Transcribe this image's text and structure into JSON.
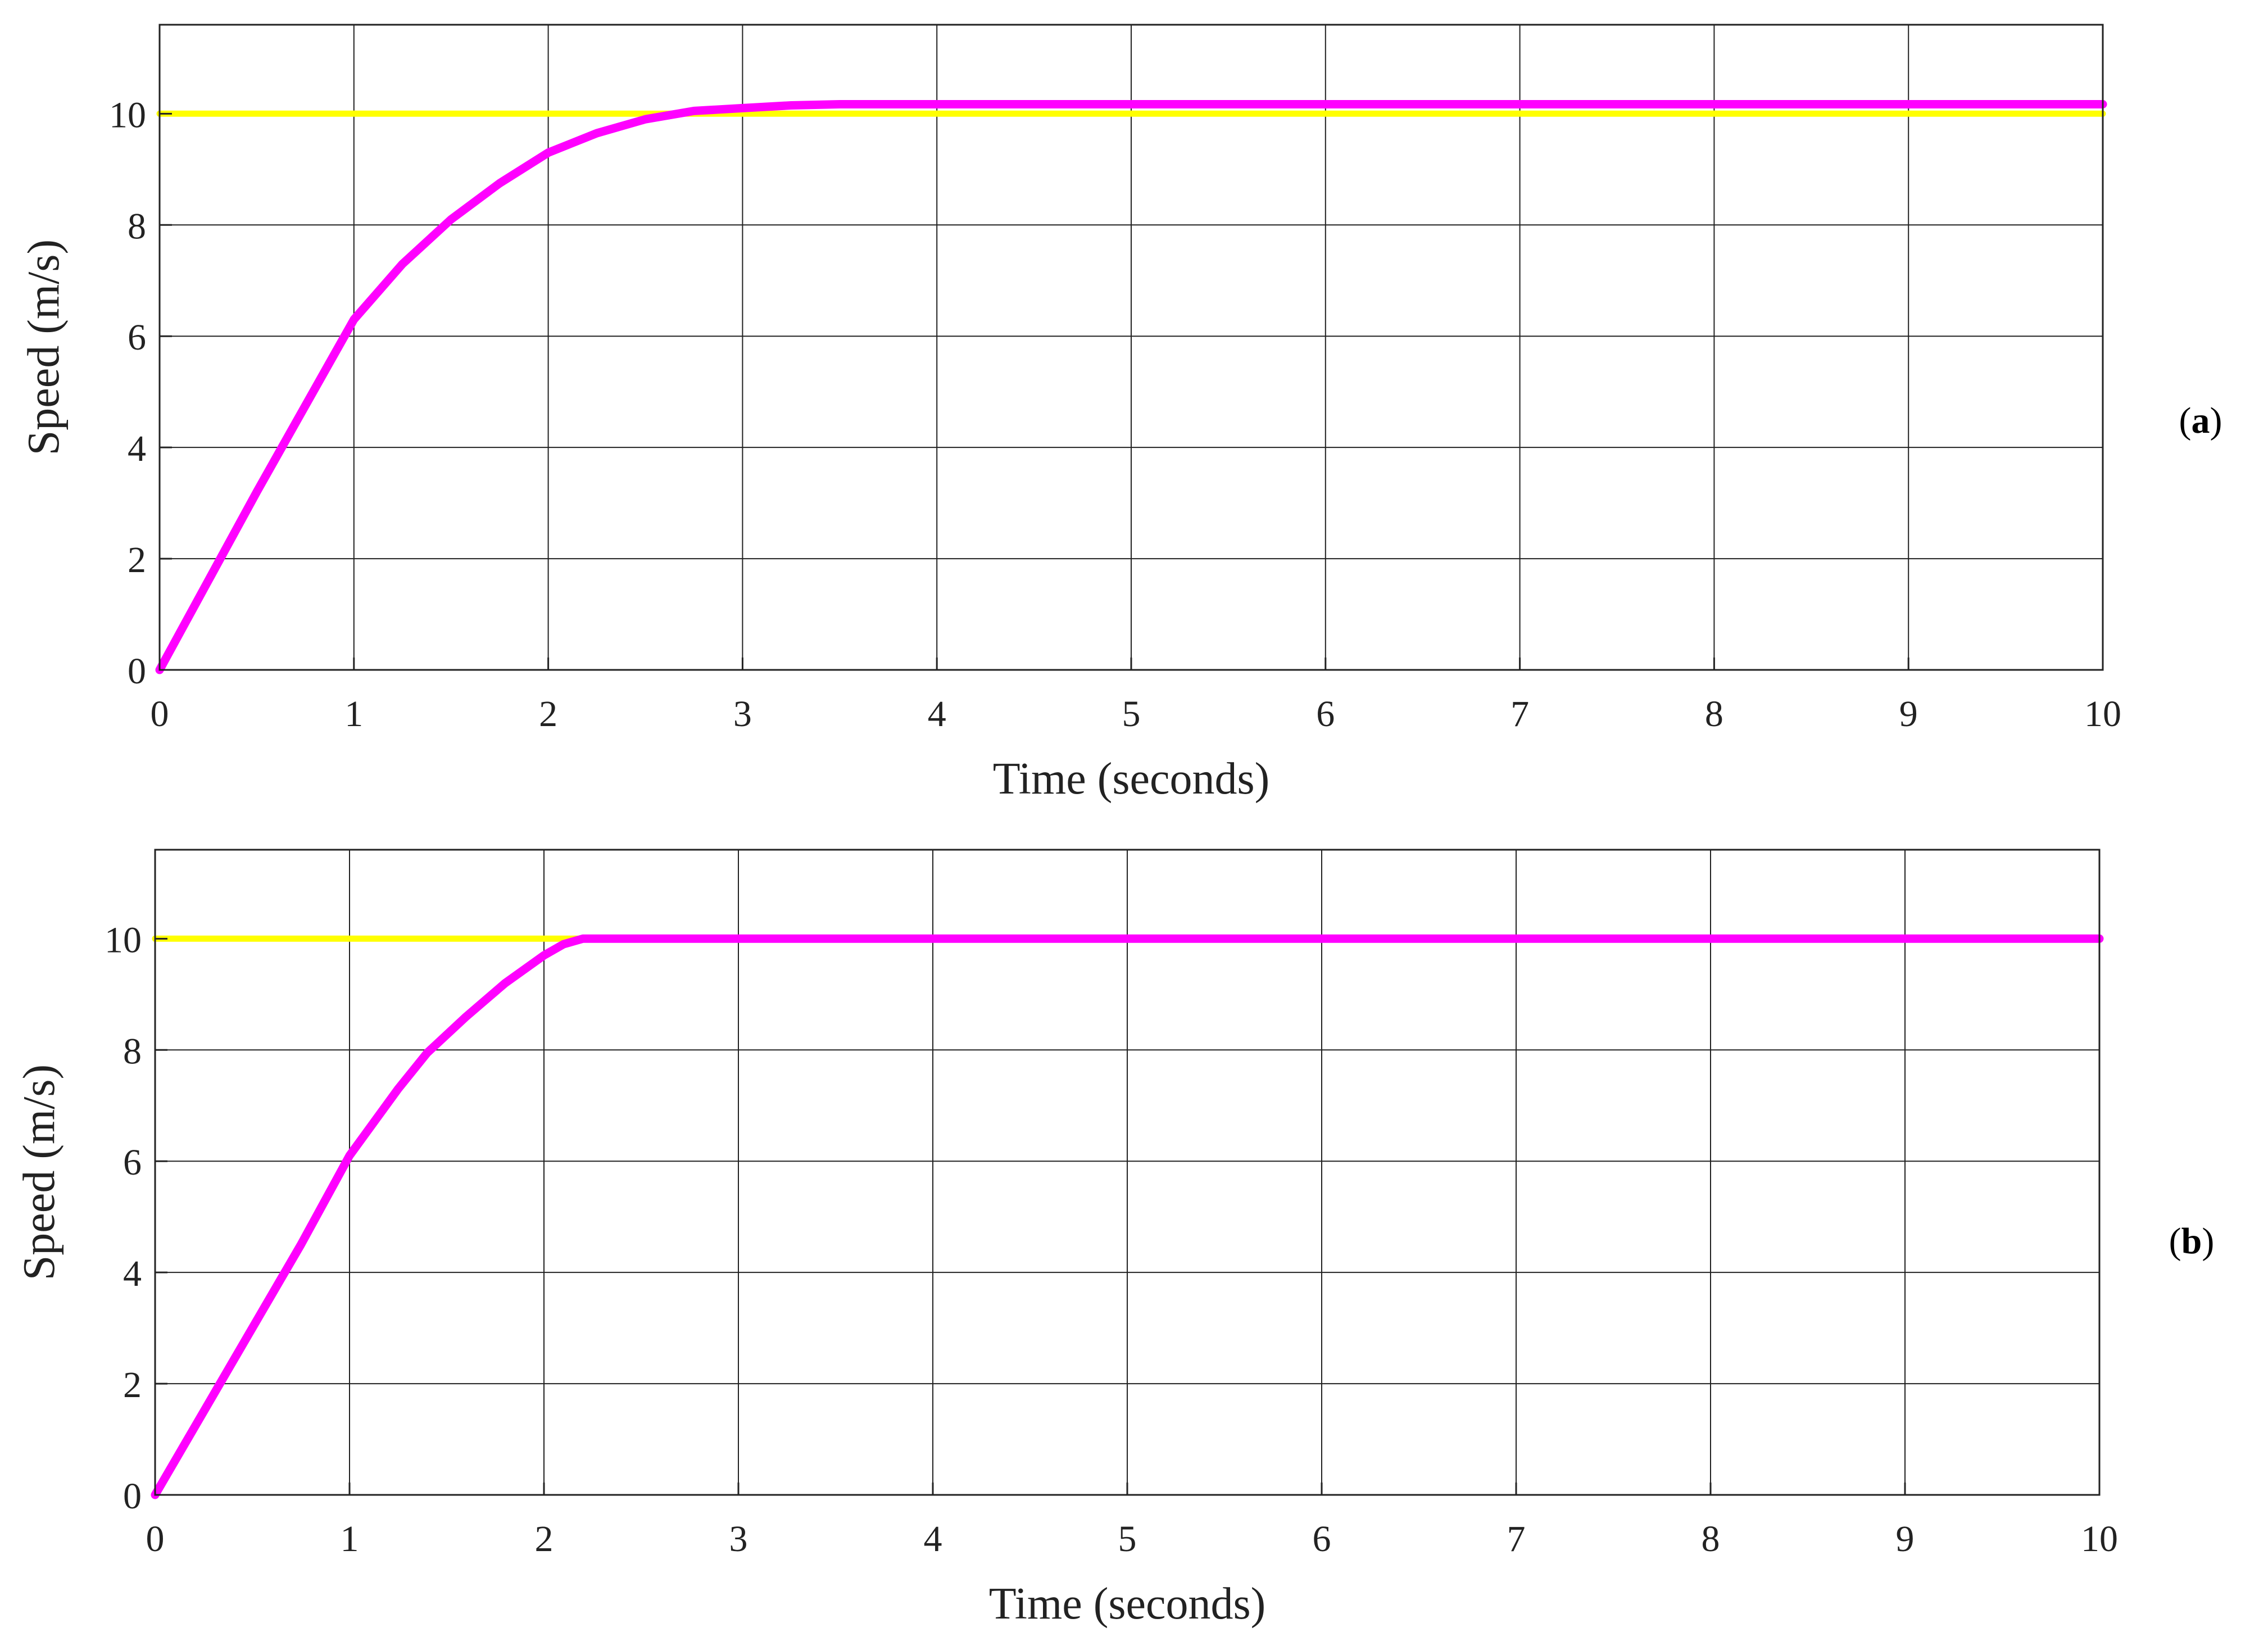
{
  "colors": {
    "reference": "#ffff00",
    "response": "#ff00ff",
    "grid": "#222222",
    "background": "#ffffff"
  },
  "chart_data": [
    {
      "type": "line",
      "panel_label": "a",
      "title": "",
      "xlabel": "Time (seconds)",
      "ylabel": "Speed (m/s)",
      "xlim": [
        0,
        10
      ],
      "ylim": [
        0,
        11.6
      ],
      "xticks": [
        "0",
        "1",
        "2",
        "3",
        "4",
        "5",
        "6",
        "7",
        "8",
        "9",
        "10"
      ],
      "yticks": [
        "0",
        "2",
        "4",
        "6",
        "8",
        "10"
      ],
      "grid": true,
      "legend": "none",
      "series": [
        {
          "color": "#ffff00",
          "x": [
            0,
            10
          ],
          "y": [
            10,
            10
          ]
        },
        {
          "color": "#ff00ff",
          "x": [
            0,
            0.25,
            0.5,
            0.75,
            1.0,
            1.25,
            1.5,
            1.75,
            2.0,
            2.25,
            2.5,
            2.75,
            3.0,
            3.25,
            3.5,
            4,
            5,
            6,
            7,
            8,
            9,
            10
          ],
          "y": [
            0,
            1.6,
            3.2,
            4.75,
            6.3,
            7.3,
            8.1,
            8.75,
            9.3,
            9.65,
            9.9,
            10.05,
            10.1,
            10.15,
            10.17,
            10.17,
            10.17,
            10.17,
            10.17,
            10.17,
            10.17,
            10.17
          ]
        }
      ]
    },
    {
      "type": "line",
      "panel_label": "b",
      "title": "",
      "xlabel": "Time (seconds)",
      "ylabel": "Speed (m/s)",
      "xlim": [
        0,
        10
      ],
      "ylim": [
        0,
        11.6
      ],
      "xticks": [
        "0",
        "1",
        "2",
        "3",
        "4",
        "5",
        "6",
        "7",
        "8",
        "9",
        "10"
      ],
      "yticks": [
        "0",
        "2",
        "4",
        "6",
        "8",
        "10"
      ],
      "grid": true,
      "legend": "none",
      "series": [
        {
          "color": "#ffff00",
          "x": [
            0,
            10
          ],
          "y": [
            10,
            10
          ]
        },
        {
          "color": "#ff00ff",
          "x": [
            0,
            0.25,
            0.5,
            0.75,
            1.0,
            1.25,
            1.4,
            1.6,
            1.8,
            2.0,
            2.1,
            2.2,
            3,
            4,
            5,
            6,
            7,
            8,
            9,
            10
          ],
          "y": [
            0,
            1.5,
            3.0,
            4.5,
            6.1,
            7.3,
            7.95,
            8.6,
            9.2,
            9.7,
            9.9,
            10,
            10,
            10,
            10,
            10,
            10,
            10,
            10,
            10
          ]
        }
      ]
    }
  ]
}
